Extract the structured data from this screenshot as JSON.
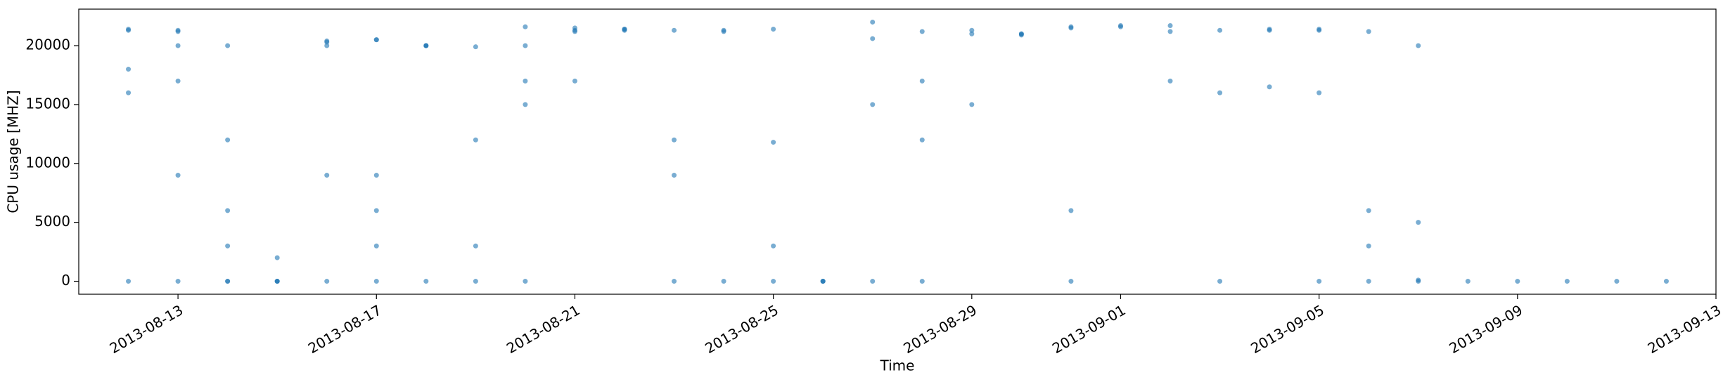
{
  "chart_data": {
    "type": "scatter",
    "x_label": "Time",
    "y_label": "CPU usage [MHZ]",
    "color": "#1f77b4",
    "x": [
      "2013-08-12",
      "2013-08-12",
      "2013-08-12",
      "2013-08-12",
      "2013-08-12",
      "2013-08-13",
      "2013-08-13",
      "2013-08-13",
      "2013-08-13",
      "2013-08-13",
      "2013-08-13",
      "2013-08-14",
      "2013-08-14",
      "2013-08-14",
      "2013-08-14",
      "2013-08-14",
      "2013-08-14",
      "2013-08-15",
      "2013-08-15",
      "2013-08-15",
      "2013-08-15",
      "2013-08-16",
      "2013-08-16",
      "2013-08-16",
      "2013-08-16",
      "2013-08-16",
      "2013-08-17",
      "2013-08-17",
      "2013-08-17",
      "2013-08-17",
      "2013-08-17",
      "2013-08-17",
      "2013-08-18",
      "2013-08-18",
      "2013-08-18",
      "2013-08-18",
      "2013-08-19",
      "2013-08-19",
      "2013-08-19",
      "2013-08-19",
      "2013-08-20",
      "2013-08-20",
      "2013-08-20",
      "2013-08-20",
      "2013-08-20",
      "2013-08-21",
      "2013-08-21",
      "2013-08-21",
      "2013-08-21",
      "2013-08-22",
      "2013-08-22",
      "2013-08-22",
      "2013-08-23",
      "2013-08-23",
      "2013-08-23",
      "2013-08-23",
      "2013-08-24",
      "2013-08-24",
      "2013-08-24",
      "2013-08-25",
      "2013-08-25",
      "2013-08-25",
      "2013-08-25",
      "2013-08-26",
      "2013-08-26",
      "2013-08-26",
      "2013-08-27",
      "2013-08-27",
      "2013-08-27",
      "2013-08-27",
      "2013-08-28",
      "2013-08-28",
      "2013-08-28",
      "2013-08-28",
      "2013-08-29",
      "2013-08-29",
      "2013-08-29",
      "2013-08-30",
      "2013-08-30",
      "2013-08-30",
      "2013-08-31",
      "2013-08-31",
      "2013-08-31",
      "2013-08-31",
      "2013-09-01",
      "2013-09-01",
      "2013-09-02",
      "2013-09-02",
      "2013-09-02",
      "2013-09-03",
      "2013-09-03",
      "2013-09-03",
      "2013-09-04",
      "2013-09-04",
      "2013-09-04",
      "2013-09-05",
      "2013-09-05",
      "2013-09-05",
      "2013-09-05",
      "2013-09-06",
      "2013-09-06",
      "2013-09-06",
      "2013-09-06",
      "2013-09-07",
      "2013-09-07",
      "2013-09-07",
      "2013-09-07",
      "2013-09-08",
      "2013-09-09",
      "2013-09-10",
      "2013-09-11",
      "2013-09-12"
    ],
    "values": [
      21300,
      21400,
      18000,
      16000,
      0,
      21200,
      20000,
      17000,
      21300,
      9000,
      0,
      3000,
      0,
      12000,
      6000,
      0,
      20000,
      0,
      0,
      0,
      2000,
      20000,
      20300,
      20400,
      0,
      9000,
      20500,
      20500,
      0,
      9000,
      6000,
      3000,
      20000,
      20000,
      20000,
      0,
      19900,
      0,
      12000,
      3000,
      17000,
      20000,
      0,
      15000,
      21600,
      21500,
      21200,
      21300,
      17000,
      21300,
      21400,
      21400,
      21300,
      12000,
      0,
      9000,
      0,
      21200,
      21300,
      21400,
      11800,
      0,
      3000,
      0,
      0,
      0,
      0,
      22000,
      20600,
      15000,
      17000,
      21200,
      0,
      12000,
      21300,
      21000,
      15000,
      21000,
      20900,
      21000,
      0,
      21600,
      21500,
      6000,
      21600,
      21700,
      21700,
      21200,
      17000,
      0,
      21300,
      16000,
      21300,
      21400,
      16500,
      21400,
      21300,
      16000,
      0,
      21200,
      6000,
      0,
      3000,
      0,
      100,
      20000,
      5000,
      0,
      0,
      0,
      0,
      0
    ],
    "xlim": [
      "2013-08-11",
      "2013-09-13"
    ],
    "xticks": [
      "2013-08-13",
      "2013-08-17",
      "2013-08-21",
      "2013-08-25",
      "2013-08-29",
      "2013-09-01",
      "2013-09-05",
      "2013-09-09",
      "2013-09-13"
    ],
    "ylim": [
      -1100,
      23100
    ],
    "yticks": [
      0,
      5000,
      10000,
      15000,
      20000
    ]
  }
}
